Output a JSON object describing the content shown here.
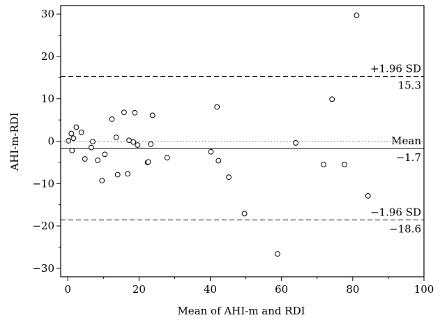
{
  "chart_data": {
    "type": "scatter",
    "title": "",
    "xlabel": "Mean of AHI-m and RDI",
    "ylabel": "AHI-m-RDI",
    "xlim": [
      -2,
      100
    ],
    "ylim": [
      -32,
      32
    ],
    "x_ticks": [
      0,
      20,
      40,
      60,
      80,
      100
    ],
    "y_ticks": [
      -30,
      -20,
      -10,
      0,
      10,
      20,
      30
    ],
    "x_tick_labels": [
      "0",
      "20",
      "40",
      "60",
      "80",
      "100"
    ],
    "y_tick_labels": [
      "−30",
      "−20",
      "−10",
      "0",
      "10",
      "20",
      "30"
    ],
    "grid": false,
    "reference_lines": [
      {
        "name": "upper",
        "y": 15.3,
        "style": "dashed",
        "label_top": "+1.96 SD",
        "label_bottom": "15.3"
      },
      {
        "name": "zero",
        "y": 0,
        "style": "dotted"
      },
      {
        "name": "mean",
        "y": -1.7,
        "style": "solid",
        "label_top": "Mean",
        "label_bottom": "−1.7"
      },
      {
        "name": "lower",
        "y": -18.6,
        "style": "dashed",
        "label_top": "−1.96 SD",
        "label_bottom": "−18.6"
      }
    ],
    "points": [
      [
        0.2,
        0.1
      ],
      [
        1.0,
        1.8
      ],
      [
        1.2,
        -2.2
      ],
      [
        1.6,
        0.7
      ],
      [
        2.4,
        3.3
      ],
      [
        3.8,
        2.1
      ],
      [
        4.8,
        -4.2
      ],
      [
        6.6,
        -1.5
      ],
      [
        7.0,
        -0.1
      ],
      [
        8.4,
        -4.5
      ],
      [
        9.6,
        -9.3
      ],
      [
        10.4,
        -3.1
      ],
      [
        12.4,
        5.2
      ],
      [
        13.6,
        0.9
      ],
      [
        14.0,
        -7.9
      ],
      [
        15.8,
        6.8
      ],
      [
        16.8,
        -7.7
      ],
      [
        17.2,
        0.2
      ],
      [
        18.4,
        -0.2
      ],
      [
        18.8,
        6.7
      ],
      [
        19.6,
        -0.9
      ],
      [
        22.4,
        -5.0
      ],
      [
        22.6,
        -4.9
      ],
      [
        23.3,
        -0.7
      ],
      [
        23.8,
        6.1
      ],
      [
        27.9,
        -3.9
      ],
      [
        40.2,
        -2.5
      ],
      [
        41.9,
        8.1
      ],
      [
        42.3,
        -4.6
      ],
      [
        45.2,
        -8.5
      ],
      [
        49.6,
        -17.1
      ],
      [
        58.9,
        -26.6
      ],
      [
        64.0,
        -0.4
      ],
      [
        71.8,
        -5.5
      ],
      [
        74.2,
        9.9
      ],
      [
        77.7,
        -5.5
      ],
      [
        81.1,
        29.7
      ],
      [
        84.3,
        -12.9
      ]
    ]
  }
}
